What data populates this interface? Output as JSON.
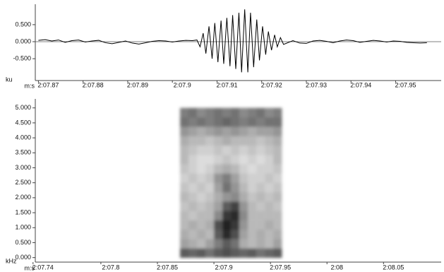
{
  "chart_data": [
    {
      "type": "line",
      "x_label": "m:s",
      "y_label": "ku",
      "color": "#000000",
      "x": [
        127.87,
        127.8715,
        127.873,
        127.8745,
        127.876,
        127.8775,
        127.879,
        127.8805,
        127.882,
        127.8835,
        127.885,
        127.8865,
        127.888,
        127.8895,
        127.891,
        127.8925,
        127.894,
        127.8955,
        127.897,
        127.8985,
        127.9,
        127.9015,
        127.903,
        127.9045,
        127.9055,
        127.9062,
        127.9069,
        127.9075,
        127.9082,
        127.9089,
        127.9095,
        127.9102,
        127.9109,
        127.9115,
        127.9122,
        127.9129,
        127.9135,
        127.9142,
        127.9149,
        127.9155,
        127.9162,
        127.9169,
        127.9175,
        127.9182,
        127.9189,
        127.9195,
        127.9202,
        127.9209,
        127.9215,
        127.9222,
        127.9229,
        127.9235,
        127.9242,
        127.9249,
        127.927,
        127.9285,
        127.93,
        127.9315,
        127.933,
        127.9345,
        127.936,
        127.9375,
        127.939,
        127.9405,
        127.942,
        127.9435,
        127.945,
        127.9465,
        127.948,
        127.9495,
        127.951,
        127.9525,
        127.954,
        127.9555,
        127.957
      ],
      "values": [
        0.04,
        0.06,
        0.02,
        0.05,
        -0.02,
        0.03,
        0.05,
        -0.01,
        0.02,
        0.04,
        -0.03,
        -0.06,
        -0.02,
        0.02,
        -0.04,
        -0.07,
        -0.03,
        0.01,
        0.03,
        0.02,
        -0.01,
        0.02,
        0.04,
        0.03,
        0.05,
        -0.15,
        0.25,
        -0.35,
        0.45,
        -0.5,
        0.55,
        -0.6,
        0.62,
        -0.65,
        0.7,
        -0.72,
        0.78,
        -0.8,
        0.85,
        -0.9,
        0.95,
        -0.9,
        0.85,
        -0.75,
        0.65,
        -0.55,
        0.45,
        -0.38,
        0.3,
        -0.25,
        0.2,
        -0.15,
        0.12,
        -0.08,
        0.03,
        -0.04,
        -0.05,
        0.02,
        0.04,
        0.01,
        -0.03,
        0.02,
        0.05,
        0.03,
        -0.02,
        0.01,
        0.04,
        0.02,
        -0.01,
        0.02,
        0.01,
        -0.02,
        -0.03,
        -0.04,
        -0.03
      ],
      "xlim": [
        127.8693,
        127.9602
      ],
      "xticks": [
        {
          "value": 127.87,
          "label": "2:07.87"
        },
        {
          "value": 127.88,
          "label": "2:07.88"
        },
        {
          "value": 127.89,
          "label": "2:07.89"
        },
        {
          "value": 127.9,
          "label": "2:07.9"
        },
        {
          "value": 127.91,
          "label": "2:07.91"
        },
        {
          "value": 127.92,
          "label": "2:07.92"
        },
        {
          "value": 127.93,
          "label": "2:07.93"
        },
        {
          "value": 127.94,
          "label": "2:07.94"
        },
        {
          "value": 127.95,
          "label": "2:07.95"
        }
      ],
      "ylim": [
        -1.1,
        1.1
      ],
      "yticks": [
        {
          "value": 0.5,
          "label": "0.500"
        },
        {
          "value": 0,
          "label": "0.000"
        },
        {
          "value": -0.5,
          "label": "-0.500"
        }
      ]
    },
    {
      "type": "heatmap",
      "x_label": "m:s",
      "y_label": "kHz",
      "colors": [
        "#ffffff",
        "#141414"
      ],
      "clim": [
        0,
        1
      ],
      "xbins": [
        127.87,
        127.8775,
        127.885,
        127.8925,
        127.9,
        127.9075,
        127.915,
        127.9225,
        127.93,
        127.9375,
        127.945,
        127.9525,
        127.96
      ],
      "ybins": [
        0,
        0.3125,
        0.625,
        0.9375,
        1.25,
        1.5625,
        1.875,
        2.1875,
        2.5,
        2.8125,
        3.125,
        3.4375,
        3.75,
        4.0625,
        4.375,
        4.6875,
        5
      ],
      "values": [
        [
          0.7,
          0.65,
          0.7,
          0.6,
          0.7,
          0.75,
          0.7,
          0.65,
          0.7,
          0.6,
          0.65,
          0.7
        ],
        [
          0.4,
          0.35,
          0.3,
          0.4,
          0.55,
          0.7,
          0.6,
          0.35,
          0.3,
          0.35,
          0.3,
          0.4
        ],
        [
          0.35,
          0.3,
          0.35,
          0.3,
          0.7,
          0.9,
          0.75,
          0.4,
          0.3,
          0.35,
          0.3,
          0.35
        ],
        [
          0.3,
          0.35,
          0.3,
          0.35,
          0.75,
          0.95,
          0.85,
          0.45,
          0.3,
          0.3,
          0.35,
          0.3
        ],
        [
          0.3,
          0.25,
          0.3,
          0.3,
          0.5,
          0.85,
          0.9,
          0.5,
          0.3,
          0.3,
          0.3,
          0.3
        ],
        [
          0.25,
          0.3,
          0.25,
          0.3,
          0.4,
          0.7,
          0.8,
          0.45,
          0.3,
          0.25,
          0.3,
          0.25
        ],
        [
          0.3,
          0.25,
          0.2,
          0.25,
          0.35,
          0.45,
          0.5,
          0.35,
          0.25,
          0.3,
          0.25,
          0.3
        ],
        [
          0.25,
          0.2,
          0.25,
          0.2,
          0.4,
          0.6,
          0.45,
          0.3,
          0.2,
          0.25,
          0.2,
          0.25
        ],
        [
          0.2,
          0.25,
          0.2,
          0.25,
          0.45,
          0.55,
          0.4,
          0.25,
          0.2,
          0.2,
          0.25,
          0.2
        ],
        [
          0.25,
          0.2,
          0.15,
          0.2,
          0.3,
          0.35,
          0.3,
          0.2,
          0.15,
          0.2,
          0.2,
          0.25
        ],
        [
          0.3,
          0.2,
          0.15,
          0.15,
          0.2,
          0.25,
          0.2,
          0.15,
          0.2,
          0.15,
          0.2,
          0.3
        ],
        [
          0.3,
          0.25,
          0.2,
          0.2,
          0.25,
          0.2,
          0.25,
          0.2,
          0.25,
          0.2,
          0.25,
          0.3
        ],
        [
          0.35,
          0.3,
          0.3,
          0.25,
          0.3,
          0.35,
          0.3,
          0.3,
          0.3,
          0.25,
          0.3,
          0.35
        ],
        [
          0.45,
          0.4,
          0.35,
          0.4,
          0.45,
          0.4,
          0.45,
          0.4,
          0.35,
          0.4,
          0.4,
          0.45
        ],
        [
          0.6,
          0.55,
          0.6,
          0.55,
          0.6,
          0.65,
          0.6,
          0.55,
          0.6,
          0.55,
          0.6,
          0.6
        ],
        [
          0.55,
          0.6,
          0.5,
          0.55,
          0.6,
          0.55,
          0.6,
          0.5,
          0.55,
          0.6,
          0.5,
          0.55
        ]
      ],
      "xlim": [
        127.742,
        128.101
      ],
      "xticks": [
        {
          "value": 127.74,
          "label": "2:07.74"
        },
        {
          "value": 127.8,
          "label": "2:07.8"
        },
        {
          "value": 127.85,
          "label": "2:07.85"
        },
        {
          "value": 127.9,
          "label": "2:07.9"
        },
        {
          "value": 127.95,
          "label": "2:07.95"
        },
        {
          "value": 128,
          "label": "2:08"
        },
        {
          "value": 128.05,
          "label": "2:08.05"
        }
      ],
      "ylim": [
        -0.15,
        5.3
      ],
      "yticks": [
        {
          "value": 0,
          "label": "0.000"
        },
        {
          "value": 0.5,
          "label": "0.500"
        },
        {
          "value": 1,
          "label": "1.000"
        },
        {
          "value": 1.5,
          "label": "1.500"
        },
        {
          "value": 2,
          "label": "2.000"
        },
        {
          "value": 2.5,
          "label": "2.500"
        },
        {
          "value": 3,
          "label": "3.000"
        },
        {
          "value": 3.5,
          "label": "3.500"
        },
        {
          "value": 4,
          "label": "4.000"
        },
        {
          "value": 4.5,
          "label": "4.500"
        },
        {
          "value": 5,
          "label": "5.000"
        }
      ]
    }
  ]
}
